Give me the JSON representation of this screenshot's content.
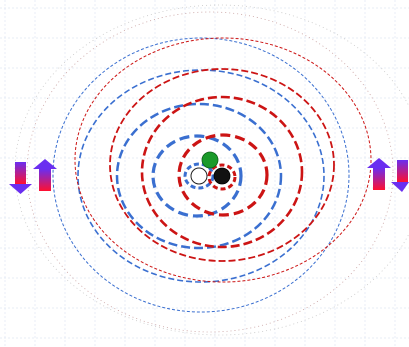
{
  "diagram": {
    "colors": {
      "blue_rings": "#3a6fd0",
      "red_rings": "#cc1414",
      "grid": "#dfe6f4",
      "faint_ring": "#b0b0b0",
      "center_green": "#1a9a2a",
      "center_black": "#111111",
      "center_white": "#ffffff",
      "arrow_top": "#6a2ef0",
      "arrow_bottom": "#ff1030"
    },
    "icons": {
      "left_pair": [
        "arrow-down-icon",
        "arrow-up-icon"
      ],
      "right_pair": [
        "arrow-up-icon",
        "arrow-down-icon"
      ],
      "center": [
        "green-dot-icon",
        "white-dot-icon",
        "black-dot-icon"
      ]
    }
  }
}
